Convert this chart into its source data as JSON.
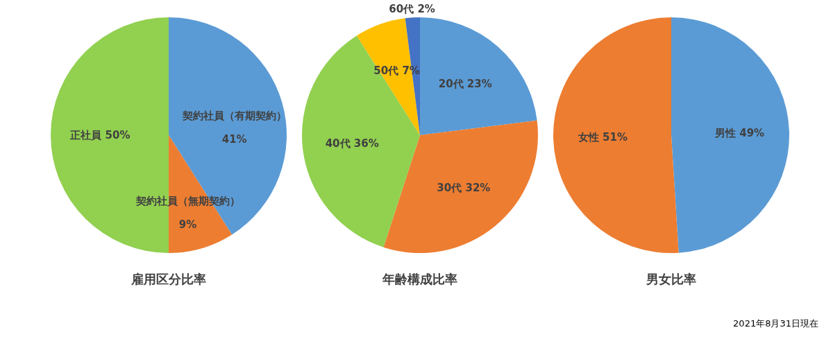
{
  "chart_data": [
    {
      "type": "pie",
      "title": "雇用区分比率",
      "categories": [
        "契約社員（有期契約）",
        "契約社員（無期契約）",
        "正社員"
      ],
      "values": [
        41,
        9,
        50
      ],
      "colors": [
        "#5b9bd5",
        "#ed7d31",
        "#92d050"
      ],
      "value_labels": [
        "41%",
        "9%",
        "50%"
      ]
    },
    {
      "type": "pie",
      "title": "年齢構成比率",
      "categories": [
        "20代",
        "30代",
        "40代",
        "50代",
        "60代"
      ],
      "values": [
        23,
        32,
        36,
        7,
        2
      ],
      "colors": [
        "#5b9bd5",
        "#ed7d31",
        "#92d050",
        "#ffc000",
        "#4472c4"
      ],
      "value_labels": [
        "23%",
        "32%",
        "36%",
        "7%",
        "2%"
      ]
    },
    {
      "type": "pie",
      "title": "男女比率",
      "categories": [
        "男性",
        "女性"
      ],
      "values": [
        49,
        51
      ],
      "colors": [
        "#5b9bd5",
        "#ed7d31"
      ],
      "value_labels": [
        "49%",
        "51%"
      ],
      "annotations": [
        "2021年8月31日現在"
      ]
    }
  ]
}
